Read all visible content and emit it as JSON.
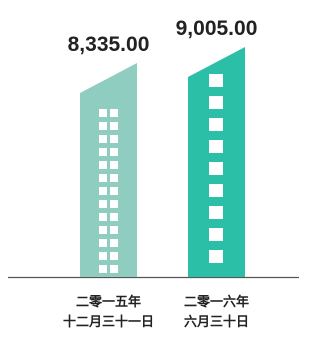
{
  "chart_data": {
    "type": "bar",
    "categories": [
      [
        "二零一五年",
        "十二月三十一日"
      ],
      [
        "二零一六年",
        "六月三十日"
      ]
    ],
    "values": [
      8335.0,
      9005.0
    ],
    "value_labels": [
      "8,335.00",
      "9,005.00"
    ],
    "colors": [
      "#8fcdc1",
      "#2bbfa8"
    ]
  }
}
